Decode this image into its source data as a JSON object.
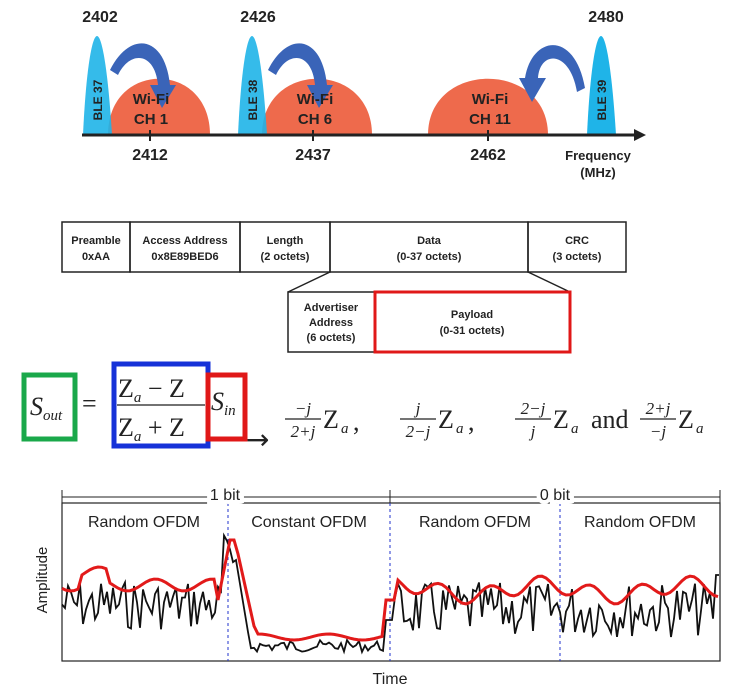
{
  "spectrum": {
    "ble": [
      {
        "label": "BLE 37",
        "freq": "2402"
      },
      {
        "label": "BLE 38",
        "freq": "2426"
      },
      {
        "label": "BLE 39",
        "freq": "2480"
      }
    ],
    "wifi": [
      {
        "line1": "Wi-Fi",
        "line2": "CH 1",
        "freq": "2412"
      },
      {
        "line1": "Wi-Fi",
        "line2": "CH 6",
        "freq": "2437"
      },
      {
        "line1": "Wi-Fi",
        "line2": "CH 11",
        "freq": "2462"
      }
    ],
    "axis_label": "Frequency",
    "axis_unit": "(MHz)",
    "colors": {
      "ble": "#1fb4e8",
      "wifi": "#ee6a4c",
      "arrow": "#3a64b8"
    }
  },
  "packet": {
    "fields": [
      {
        "name": "Preamble",
        "detail": "0xAA"
      },
      {
        "name": "Access Address",
        "detail": "0x8E89BED6"
      },
      {
        "name": "Length",
        "detail": "(2 octets)"
      },
      {
        "name": "Data",
        "detail": "(0-37 octets)"
      },
      {
        "name": "CRC",
        "detail": "(3 octets)"
      }
    ],
    "subfields": [
      {
        "name": "Advertiser",
        "name2": "Address",
        "detail": "(6 octets)"
      },
      {
        "name": "Payload",
        "detail": "(0-31 octets)"
      }
    ]
  },
  "equation": {
    "s_out": "S",
    "s_out_sub": "out",
    "equals": "=",
    "num": "Z",
    "num_sub": "a",
    "num_rest": " − Z",
    "den": "Z",
    "den_sub": "a",
    "den_rest": " + Z",
    "s_in": "S",
    "s_in_sub": "in",
    "arrow": "→",
    "terms": [
      {
        "num": "−j",
        "den": "2+j"
      },
      {
        "num": "j",
        "den": "2−j"
      },
      {
        "num": "2−j",
        "den": "j"
      },
      {
        "num": "2+j",
        "den": "−j"
      }
    ],
    "z": "Z",
    "z_sub": "a",
    "sep": ",",
    "and": "and"
  },
  "signal_plot": {
    "bit1": "1 bit",
    "bit0": "0 bit",
    "segments": [
      "Random OFDM",
      "Constant OFDM",
      "Random OFDM",
      "Random OFDM"
    ],
    "ylabel": "Amplitude",
    "xlabel": "Time"
  }
}
